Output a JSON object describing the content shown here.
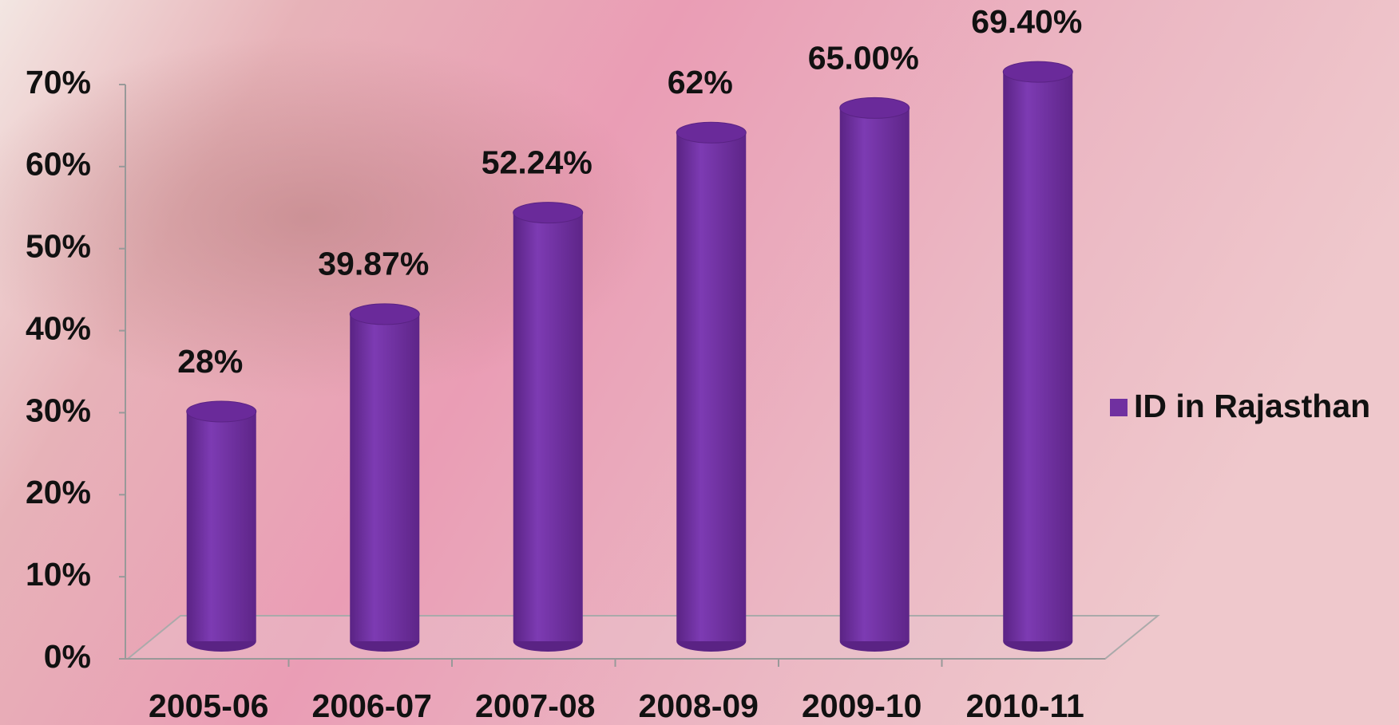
{
  "chart_data": {
    "type": "bar",
    "categories": [
      "2005-06",
      "2006-07",
      "2007-08",
      "2008-09",
      "2009-10",
      "2010-11"
    ],
    "series": [
      {
        "name": "ID in Rajasthan",
        "color": "#7030a0",
        "values": [
          28,
          39.87,
          52.24,
          62,
          65,
          69.4
        ],
        "value_labels": [
          "28%",
          "39.87%",
          "52.24%",
          "62%",
          "65.00%",
          "69.40%"
        ]
      }
    ],
    "ylim": [
      0,
      70
    ],
    "yticks": [
      {
        "value": 0,
        "label": "0%"
      },
      {
        "value": 10,
        "label": "10%"
      },
      {
        "value": 20,
        "label": "20%"
      },
      {
        "value": 30,
        "label": "30%"
      },
      {
        "value": 40,
        "label": "40%"
      },
      {
        "value": 50,
        "label": "50%"
      },
      {
        "value": 60,
        "label": "60%"
      },
      {
        "value": 70,
        "label": "70%"
      }
    ],
    "legend": "right"
  }
}
